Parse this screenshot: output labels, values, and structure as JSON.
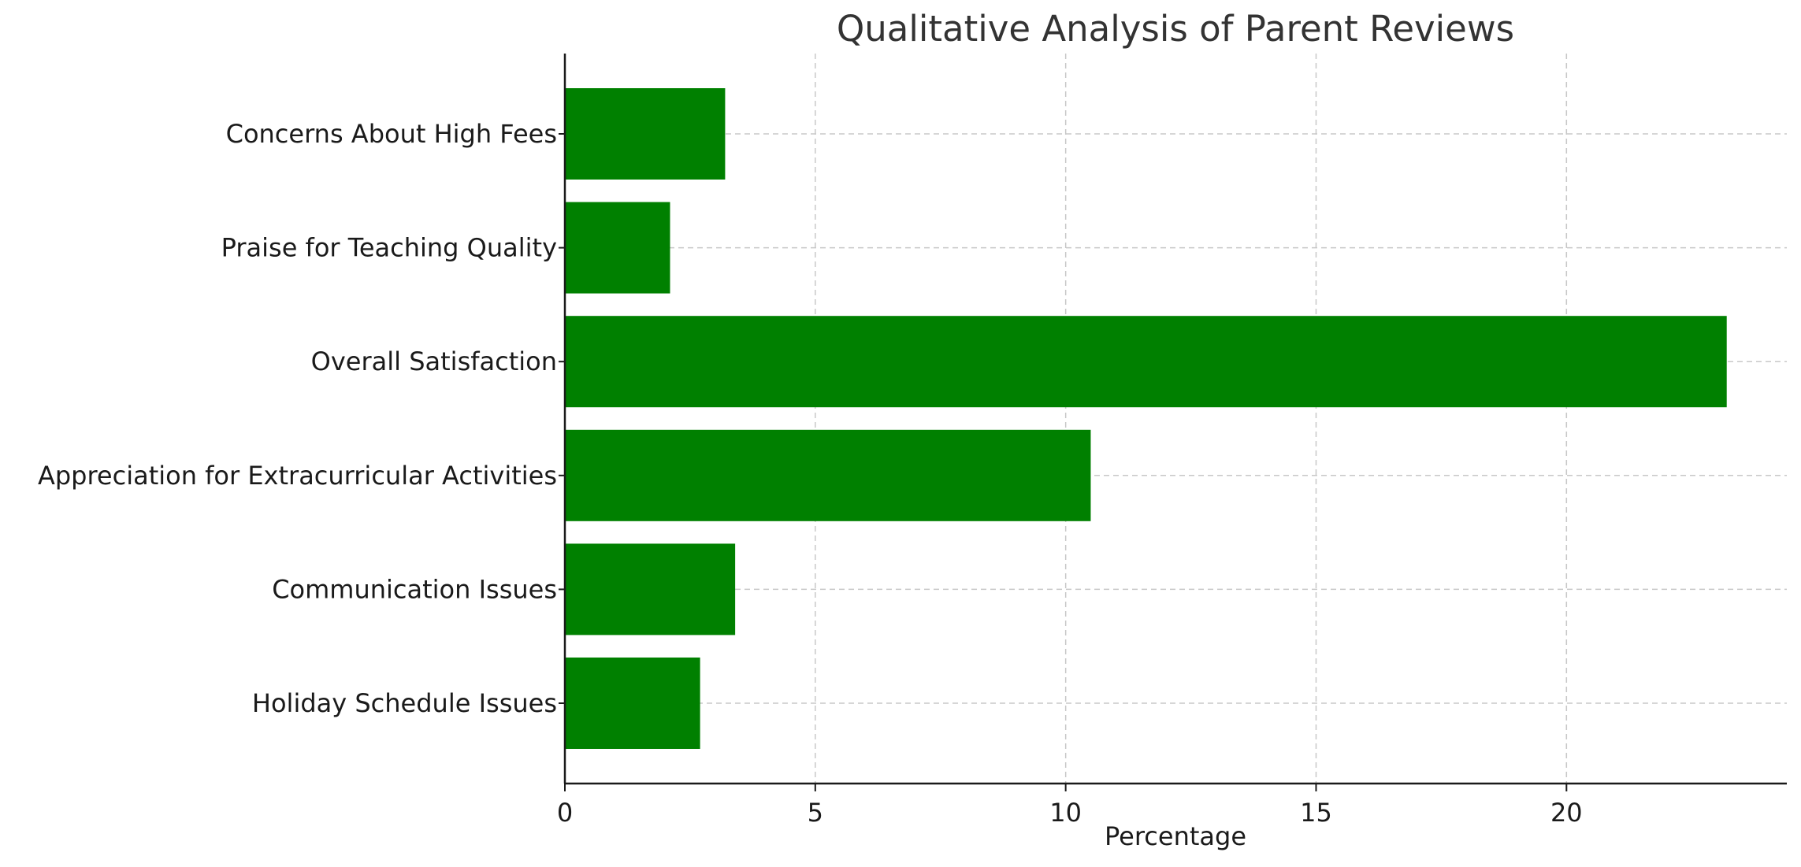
{
  "chart_data": {
    "type": "bar",
    "orientation": "horizontal",
    "title": "Qualitative Analysis of Parent Reviews",
    "xlabel": "Percentage",
    "ylabel": "",
    "categories": [
      "Concerns About High Fees",
      "Praise for Teaching Quality",
      "Overall Satisfaction",
      "Appreciation for Extracurricular Activities",
      "Communication Issues",
      "Holiday Schedule Issues"
    ],
    "values": [
      3.2,
      2.1,
      23.2,
      10.5,
      3.4,
      2.7
    ],
    "xlim": [
      0,
      24.4
    ],
    "xticks": [
      0,
      5,
      10,
      15,
      20
    ],
    "grid": true,
    "bar_color": "#008000"
  }
}
